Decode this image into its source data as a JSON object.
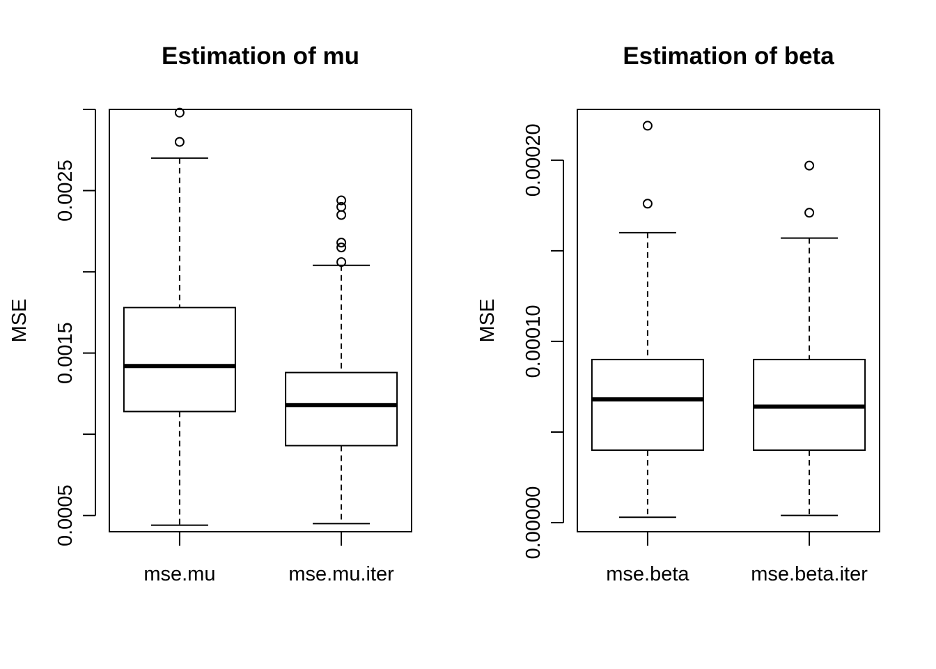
{
  "chart_data": [
    {
      "type": "boxplot",
      "title": "Estimation of mu",
      "ylabel": "MSE",
      "xlabel": "",
      "ylim": [
        0.0004,
        0.003
      ],
      "y_ticks": [
        0.0005,
        0.001,
        0.0015,
        0.002,
        0.0025,
        0.003
      ],
      "y_tick_labels": [
        "0.0005",
        "",
        "0.0015",
        "",
        "0.0025",
        ""
      ],
      "categories": [
        "mse.mu",
        "mse.mu.iter"
      ],
      "boxes": [
        {
          "name": "mse.mu",
          "min": 0.00044,
          "q1": 0.00114,
          "median": 0.00142,
          "q3": 0.00178,
          "max": 0.0027,
          "outliers": [
            0.00298,
            0.0028
          ]
        },
        {
          "name": "mse.mu.iter",
          "min": 0.00045,
          "q1": 0.00093,
          "median": 0.00118,
          "q3": 0.00138,
          "max": 0.00204,
          "outliers": [
            0.00244,
            0.0024,
            0.00235,
            0.00218,
            0.00215,
            0.00206
          ]
        }
      ]
    },
    {
      "type": "boxplot",
      "title": "Estimation of beta",
      "ylabel": "MSE",
      "xlabel": "",
      "ylim": [
        -5e-06,
        0.000228
      ],
      "y_ticks": [
        0.0,
        5e-05,
        0.0001,
        0.00015,
        0.0002
      ],
      "y_tick_labels": [
        "0.00000",
        "",
        "0.00010",
        "",
        "0.00020"
      ],
      "categories": [
        "mse.beta",
        "mse.beta.iter"
      ],
      "boxes": [
        {
          "name": "mse.beta",
          "min": 3e-06,
          "q1": 4e-05,
          "median": 6.8e-05,
          "q3": 9e-05,
          "max": 0.00016,
          "outliers": [
            0.000219,
            0.000176
          ]
        },
        {
          "name": "mse.beta.iter",
          "min": 4e-06,
          "q1": 4e-05,
          "median": 6.4e-05,
          "q3": 9e-05,
          "max": 0.000157,
          "outliers": [
            0.000197,
            0.000171
          ]
        }
      ]
    }
  ]
}
